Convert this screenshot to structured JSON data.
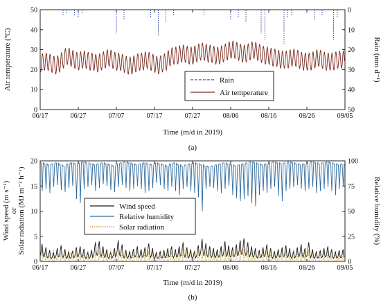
{
  "chart_data": [
    {
      "type": "line",
      "panel_label": "(a)",
      "xlabel": "Time (m/d in 2019)",
      "x_ticks": [
        "06/17",
        "06/27",
        "07/07",
        "07/17",
        "07/27",
        "08/06",
        "08/16",
        "08/26",
        "09/05"
      ],
      "x_range": [
        "06/17",
        "09/05"
      ],
      "y_left": {
        "label": "Air temperature (ºC)",
        "range": [
          0,
          50
        ],
        "ticks": [
          0,
          10,
          20,
          30,
          40,
          50
        ]
      },
      "y_right": {
        "label": "Rain (mm d⁻¹)",
        "range": [
          0,
          50
        ],
        "ticks": [
          0,
          10,
          20,
          30,
          40,
          50
        ],
        "inverted": true
      },
      "legend": {
        "position": "lower-center",
        "entries": [
          "Rain",
          "Air temperature"
        ]
      },
      "series": [
        {
          "name": "Air temperature",
          "axis": "left",
          "color": "#7a2a1e",
          "style": "solid",
          "daily_mean": [
            23,
            24,
            24,
            23,
            22,
            23,
            25,
            27,
            26,
            25,
            24,
            25,
            25,
            24,
            24,
            23,
            24,
            25,
            26,
            25,
            24,
            24,
            23,
            22,
            22,
            23,
            24,
            24,
            25,
            24,
            23,
            22,
            23,
            24,
            26,
            27,
            27,
            28,
            28,
            27,
            27,
            28,
            29,
            29,
            28,
            28,
            27,
            27,
            28,
            29,
            30,
            30,
            29,
            28,
            28,
            29,
            30,
            29,
            28,
            27,
            27,
            26,
            26,
            25,
            25,
            25,
            26,
            26,
            25,
            24,
            24,
            24,
            25,
            26,
            25,
            24,
            24,
            24,
            25,
            25
          ],
          "daily_amplitude": 4.5
        },
        {
          "name": "Rain",
          "axis": "right",
          "color": "#3a4aa8",
          "style": "dashed",
          "events": [
            {
              "x": "06/23",
              "value": 3
            },
            {
              "x": "06/24",
              "value": 2
            },
            {
              "x": "06/26",
              "value": 3
            },
            {
              "x": "06/27",
              "value": 4
            },
            {
              "x": "06/28",
              "value": 2
            },
            {
              "x": "07/07",
              "value": 12
            },
            {
              "x": "07/09",
              "value": 5
            },
            {
              "x": "07/16",
              "value": 4
            },
            {
              "x": "07/18",
              "value": 13
            },
            {
              "x": "07/20",
              "value": 6
            },
            {
              "x": "07/22",
              "value": 3
            },
            {
              "x": "07/30",
              "value": 3
            },
            {
              "x": "08/06",
              "value": 5
            },
            {
              "x": "08/08",
              "value": 4
            },
            {
              "x": "08/10",
              "value": 6
            },
            {
              "x": "08/14",
              "value": 12
            },
            {
              "x": "08/15",
              "value": 15
            },
            {
              "x": "08/20",
              "value": 17
            },
            {
              "x": "08/21",
              "value": 4
            },
            {
              "x": "08/22",
              "value": 3
            },
            {
              "x": "08/28",
              "value": 5
            },
            {
              "x": "08/30",
              "value": 3
            },
            {
              "x": "09/02",
              "value": 15
            },
            {
              "x": "09/03",
              "value": 4
            }
          ]
        }
      ]
    },
    {
      "type": "line",
      "panel_label": "(b)",
      "xlabel": "Time (m/d in 2019)",
      "x_ticks": [
        "06/17",
        "06/27",
        "07/07",
        "07/17",
        "07/27",
        "08/06",
        "08/16",
        "08/26",
        "09/05"
      ],
      "x_range": [
        "06/17",
        "09/05"
      ],
      "y_left": {
        "label_lines": [
          "Wind speed (m s⁻¹)",
          "or",
          "Solar radiation (MJ m⁻² h⁻¹)"
        ],
        "range": [
          0,
          20
        ],
        "ticks": [
          0,
          5,
          10,
          15,
          20
        ]
      },
      "y_right": {
        "label": "Relative humidity (%)",
        "range": [
          0,
          100
        ],
        "ticks": [
          0,
          25,
          50,
          75,
          100
        ]
      },
      "legend": {
        "position": "lower-left",
        "entries": [
          "Wind speed",
          "Relative humidity",
          "Solar radiation"
        ]
      },
      "series": [
        {
          "name": "Relative humidity",
          "axis": "right",
          "color": "#2f6a9c",
          "style": "solid",
          "daily_max": [
            98,
            97,
            96,
            97,
            98,
            96,
            95,
            97,
            98,
            97,
            98,
            99,
            98,
            97,
            96,
            97,
            98,
            97,
            96,
            95,
            97,
            98,
            99,
            98,
            97,
            96,
            97,
            98,
            97,
            96,
            98,
            97,
            96,
            95,
            97,
            98,
            96,
            95,
            96,
            97,
            98,
            97,
            96,
            95,
            94,
            95,
            96,
            97,
            98,
            97,
            96,
            95,
            96,
            97,
            98,
            99,
            98,
            97,
            96,
            97,
            98,
            99,
            98,
            97,
            98,
            99,
            98,
            97,
            96,
            97,
            98,
            99,
            98,
            97,
            98,
            99,
            98,
            97,
            96,
            97
          ],
          "daily_min": [
            70,
            72,
            68,
            74,
            76,
            71,
            69,
            73,
            75,
            62,
            58,
            72,
            74,
            76,
            70,
            73,
            77,
            75,
            71,
            69,
            74,
            76,
            73,
            70,
            72,
            75,
            72,
            68,
            70,
            73,
            78,
            76,
            72,
            70,
            74,
            70,
            66,
            72,
            74,
            70,
            68,
            64,
            50,
            72,
            74,
            73,
            70,
            68,
            72,
            75,
            66,
            63,
            60,
            62,
            65,
            58,
            55,
            66,
            70,
            68,
            72,
            74,
            65,
            60,
            70,
            72,
            74,
            76,
            72,
            70,
            72,
            74,
            68,
            70,
            72,
            74,
            70,
            66,
            72,
            75
          ]
        },
        {
          "name": "Wind speed",
          "axis": "left",
          "color": "#1a1a1a",
          "style": "solid",
          "daily_max": [
            3.5,
            2.8,
            2.2,
            1.8,
            2.6,
            3.2,
            2.4,
            1.9,
            2.1,
            2.8,
            3.0,
            2.5,
            1.8,
            2.2,
            3.8,
            4.0,
            3.0,
            2.4,
            1.8,
            2.6,
            4.2,
            3.4,
            2.2,
            2.0,
            2.5,
            3.0,
            2.4,
            2.8,
            3.6,
            2.6,
            1.8,
            2.0,
            2.2,
            2.6,
            3.0,
            2.4,
            3.0,
            3.8,
            2.8,
            2.4,
            2.0,
            3.2,
            4.5,
            3.6,
            3.0,
            2.6,
            2.4,
            3.0,
            4.0,
            3.2,
            2.8,
            3.4,
            4.2,
            4.6,
            3.8,
            3.0,
            2.6,
            2.2,
            2.8,
            3.4,
            2.6,
            2.0,
            2.4,
            2.8,
            3.2,
            2.6,
            2.0,
            2.8,
            3.4,
            2.6,
            3.8,
            2.4,
            2.0,
            2.2,
            2.6,
            3.0,
            2.4,
            2.0,
            2.2,
            2.4
          ]
        },
        {
          "name": "Solar radiation",
          "axis": "left",
          "color": "#c9a437",
          "style": "dotted",
          "daily_peak": [
            2.2,
            2.0,
            2.4,
            2.3,
            1.8,
            2.1,
            2.5,
            2.4,
            2.2,
            1.6,
            1.4,
            2.0,
            2.3,
            2.4,
            2.2,
            2.0,
            2.3,
            2.4,
            2.5,
            2.2,
            2.0,
            1.8,
            2.4,
            2.5,
            2.3,
            2.2,
            2.4,
            2.5,
            2.3,
            2.1,
            2.0,
            2.2,
            2.4,
            2.5,
            2.3,
            2.4,
            2.5,
            2.6,
            2.4,
            2.2,
            2.3,
            2.1,
            1.6,
            2.0,
            2.4,
            2.5,
            2.3,
            2.2,
            2.4,
            2.3,
            2.2,
            2.0,
            2.4,
            2.5,
            2.3,
            2.1,
            2.2,
            2.4,
            2.3,
            2.2,
            2.0,
            2.3,
            2.4,
            2.2,
            2.1,
            2.3,
            2.4,
            2.2,
            2.0,
            2.2,
            2.3,
            2.2,
            2.1,
            2.0,
            2.2,
            2.3,
            2.2,
            2.0,
            2.1,
            2.2
          ]
        }
      ]
    }
  ]
}
